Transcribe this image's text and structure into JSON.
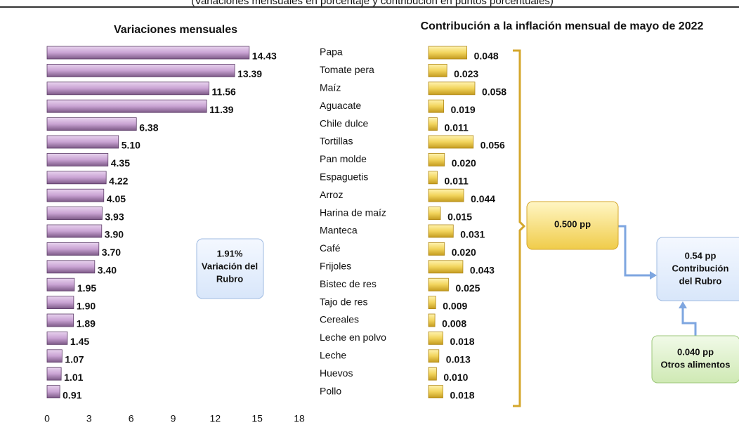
{
  "subtitle": "(Variaciones mensuales en porcentaje y contribución en puntos porcentuales)",
  "chart_data": [
    {
      "type": "bar",
      "orientation": "horizontal",
      "title": "Variaciones mensuales",
      "categories": [
        "Papa",
        "Tomate pera",
        "Maíz",
        "Aguacate",
        "Chile dulce",
        "Tortillas",
        "Pan molde",
        "Espaguetis",
        "Arroz",
        "Harina de maíz",
        "Manteca",
        "Café",
        "Frijoles",
        "Bistec de res",
        "Tajo de res",
        "Cereales",
        "Leche en polvo",
        "Leche",
        "Huevos",
        "Pollo"
      ],
      "values": [
        14.43,
        13.39,
        11.56,
        11.39,
        6.38,
        5.1,
        4.35,
        4.22,
        4.05,
        3.93,
        3.9,
        3.7,
        3.4,
        1.95,
        1.9,
        1.89,
        1.45,
        1.07,
        1.01,
        0.91
      ],
      "value_labels": [
        "14.43",
        "13.39",
        "11.56",
        "11.39",
        "6.38",
        "5.10",
        "4.35",
        "4.22",
        "4.05",
        "3.93",
        "3.90",
        "3.70",
        "3.40",
        "1.95",
        "1.90",
        "1.89",
        "1.45",
        "1.07",
        "1.01",
        "0.91"
      ],
      "color": "#c9a3d3",
      "xlim": [
        0,
        18
      ],
      "xticks": [
        0,
        3,
        6,
        9,
        12,
        15,
        18
      ],
      "annotation": [
        "1.91%",
        "Variación del",
        "Rubro"
      ]
    },
    {
      "type": "bar",
      "orientation": "horizontal",
      "title": "Contribución a la inflación mensual de mayo de 2022",
      "values": [
        0.048,
        0.023,
        0.058,
        0.019,
        0.011,
        0.056,
        0.02,
        0.011,
        0.044,
        0.015,
        0.031,
        0.02,
        0.043,
        0.025,
        0.009,
        0.008,
        0.018,
        0.013,
        0.01,
        0.018
      ],
      "value_labels": [
        "0.048",
        "0.023",
        "0.058",
        "0.019",
        "0.011",
        "0.056",
        "0.020",
        "0.011",
        "0.044",
        "0.015",
        "0.031",
        "0.020",
        "0.043",
        "0.025",
        "0.009",
        "0.008",
        "0.018",
        "0.013",
        "0.010",
        "0.018"
      ],
      "color": "#f2d45c",
      "annotations": {
        "sum": [
          "0.500 pp"
        ],
        "total": [
          "0.54 pp",
          "Contribución",
          "del Rubro"
        ],
        "other": [
          "0.040 pp",
          "Otros alimentos"
        ]
      }
    }
  ]
}
